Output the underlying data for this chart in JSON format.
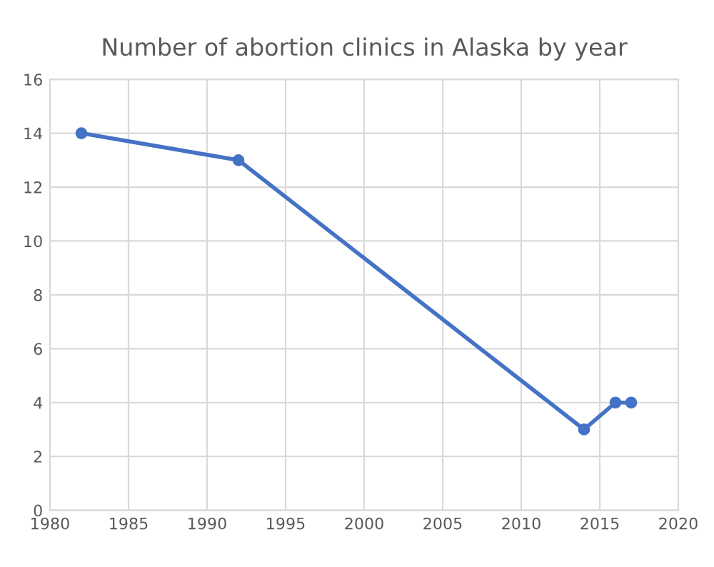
{
  "chart_data": {
    "type": "line",
    "title": "Number of abortion clinics in Alaska by year",
    "x": [
      1982,
      1992,
      2014,
      2016,
      2017
    ],
    "series": [
      {
        "color": "#4472c4",
        "values": [
          14,
          13,
          3,
          4,
          4
        ]
      }
    ],
    "xlim": [
      1980,
      2020
    ],
    "xticks": [
      1980,
      1985,
      1990,
      1995,
      2000,
      2005,
      2010,
      2015,
      2020
    ],
    "ylim": [
      0,
      16
    ],
    "yticks": [
      0,
      2,
      4,
      6,
      8,
      10,
      12,
      14,
      16
    ],
    "grid": true,
    "marker": "circle",
    "line_style": "solid"
  }
}
